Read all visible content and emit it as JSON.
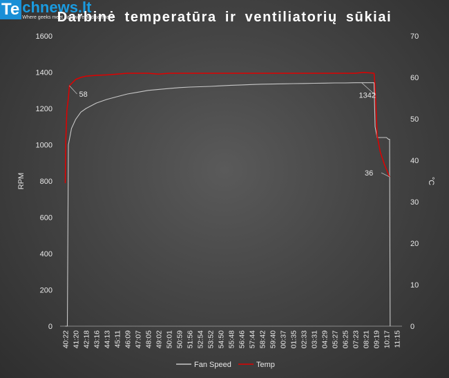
{
  "logo": {
    "te": "Te",
    "domain": "chnews.lt",
    "tagline": "Where geeks meet hardware and software"
  },
  "colors": {
    "background": "#404040",
    "fan_speed": "#c8c8c8",
    "temp": "#e00000",
    "text": "#e8e8e8"
  },
  "chart_data": {
    "type": "line",
    "title": "Darbinė temperatūra ir ventiliatorių sūkiai",
    "ylabel": "RPM",
    "y2label": "°C",
    "ylim": [
      0,
      1600
    ],
    "y2lim": [
      0,
      70
    ],
    "yticks": [
      0,
      200,
      400,
      600,
      800,
      1000,
      1200,
      1400,
      1600
    ],
    "y2ticks": [
      0,
      10,
      20,
      30,
      40,
      50,
      60,
      70
    ],
    "grid": false,
    "legend_position": "bottom",
    "categories": [
      "40:22",
      "41:20",
      "42:18",
      "43:16",
      "44:13",
      "45:11",
      "46:09",
      "47:07",
      "48:05",
      "49:02",
      "50:01",
      "50:59",
      "51:56",
      "52:54",
      "53:52",
      "54:50",
      "55:48",
      "56:46",
      "57:44",
      "58:42",
      "59:40",
      "00:37",
      "01:35",
      "02:33",
      "03:31",
      "04:29",
      "05:27",
      "06:25",
      "07:23",
      "08:21",
      "09:19",
      "10:17",
      "11:15"
    ],
    "series": [
      {
        "name": "Fan Speed",
        "axis": "left",
        "color": "#c8c8c8",
        "points": [
          [
            0,
            0
          ],
          [
            0.2,
            0
          ],
          [
            0.3,
            1000
          ],
          [
            0.6,
            1090
          ],
          [
            1,
            1140
          ],
          [
            1.5,
            1180
          ],
          [
            2,
            1200
          ],
          [
            3,
            1230
          ],
          [
            4,
            1250
          ],
          [
            5,
            1265
          ],
          [
            6,
            1280
          ],
          [
            7,
            1290
          ],
          [
            8,
            1300
          ],
          [
            9,
            1305
          ],
          [
            10,
            1310
          ],
          [
            11,
            1315
          ],
          [
            12,
            1318
          ],
          [
            13,
            1320
          ],
          [
            14,
            1322
          ],
          [
            15,
            1325
          ],
          [
            16,
            1328
          ],
          [
            17,
            1330
          ],
          [
            18,
            1332
          ],
          [
            19,
            1334
          ],
          [
            20,
            1335
          ],
          [
            21,
            1336
          ],
          [
            22,
            1337
          ],
          [
            23,
            1338
          ],
          [
            24,
            1339
          ],
          [
            25,
            1340
          ],
          [
            26,
            1341
          ],
          [
            27,
            1341
          ],
          [
            28,
            1342
          ],
          [
            29,
            1342
          ],
          [
            29.8,
            1342
          ],
          [
            29.9,
            1100
          ],
          [
            30.1,
            1040
          ],
          [
            31,
            1040
          ],
          [
            31.2,
            1030
          ],
          [
            31.3,
            1030
          ],
          [
            31.35,
            0
          ]
        ]
      },
      {
        "name": "Temp",
        "axis": "right",
        "color": "#e00000",
        "points": [
          [
            0,
            34.5
          ],
          [
            0.05,
            45
          ],
          [
            0.15,
            52
          ],
          [
            0.3,
            55
          ],
          [
            0.4,
            58
          ],
          [
            0.6,
            58.5
          ],
          [
            1,
            59.5
          ],
          [
            1.5,
            60
          ],
          [
            2,
            60.3
          ],
          [
            3,
            60.5
          ],
          [
            4,
            60.6
          ],
          [
            5,
            60.8
          ],
          [
            6,
            61
          ],
          [
            7,
            61
          ],
          [
            8,
            61
          ],
          [
            9,
            60.8
          ],
          [
            10,
            61
          ],
          [
            11,
            61
          ],
          [
            12,
            61
          ],
          [
            13,
            61
          ],
          [
            14,
            61
          ],
          [
            15,
            61
          ],
          [
            16,
            61
          ],
          [
            17,
            61
          ],
          [
            18,
            61
          ],
          [
            19,
            61
          ],
          [
            20,
            61
          ],
          [
            21,
            61
          ],
          [
            22,
            61
          ],
          [
            23,
            61
          ],
          [
            24,
            61
          ],
          [
            25,
            61
          ],
          [
            26,
            61
          ],
          [
            27,
            61
          ],
          [
            28,
            61
          ],
          [
            28.8,
            61.2
          ],
          [
            29.8,
            61
          ],
          [
            29.9,
            58
          ],
          [
            30,
            52
          ],
          [
            30.1,
            46
          ],
          [
            30.4,
            42
          ],
          [
            30.8,
            39
          ],
          [
            31.3,
            36
          ]
        ]
      }
    ],
    "annotations": [
      {
        "label": "58",
        "series": "Temp",
        "x": 0.4,
        "y": 58
      },
      {
        "label": "1342",
        "series": "Fan Speed",
        "x": 28.6,
        "y": 1342
      },
      {
        "label": "36",
        "series": "Temp",
        "x": 31.3,
        "y": 36
      }
    ]
  }
}
